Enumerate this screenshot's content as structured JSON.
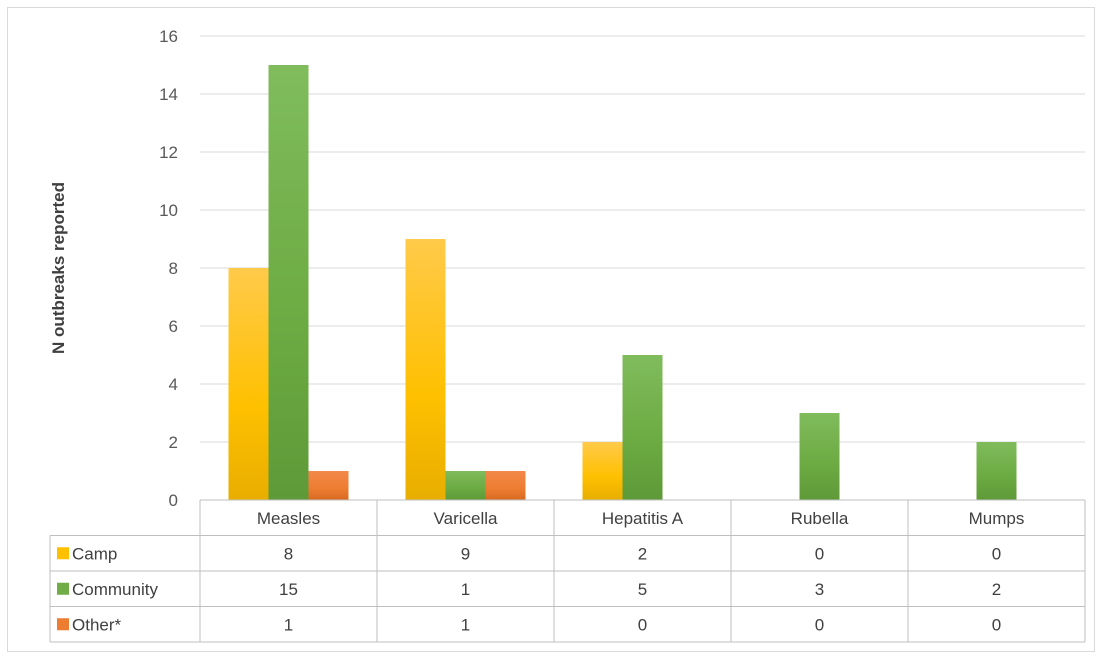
{
  "chart_data": {
    "type": "bar",
    "title": "",
    "xlabel": "",
    "ylabel": "N outbreaks reported",
    "ylim": [
      0,
      16
    ],
    "yticks": [
      0,
      2,
      4,
      6,
      8,
      10,
      12,
      14,
      16
    ],
    "grid": true,
    "legend": "data-table-left",
    "categories": [
      "Measles",
      "Varicella",
      "Hepatitis A",
      "Rubella",
      "Mumps"
    ],
    "series": [
      {
        "name": "Camp",
        "values": [
          8,
          9,
          2,
          0,
          0
        ],
        "color": "#FFC000"
      },
      {
        "name": "Community",
        "values": [
          15,
          1,
          5,
          3,
          2
        ],
        "color": "#70AD47"
      },
      {
        "name": "Other*",
        "values": [
          1,
          1,
          0,
          0,
          0
        ],
        "color": "#ED7D31"
      }
    ]
  }
}
